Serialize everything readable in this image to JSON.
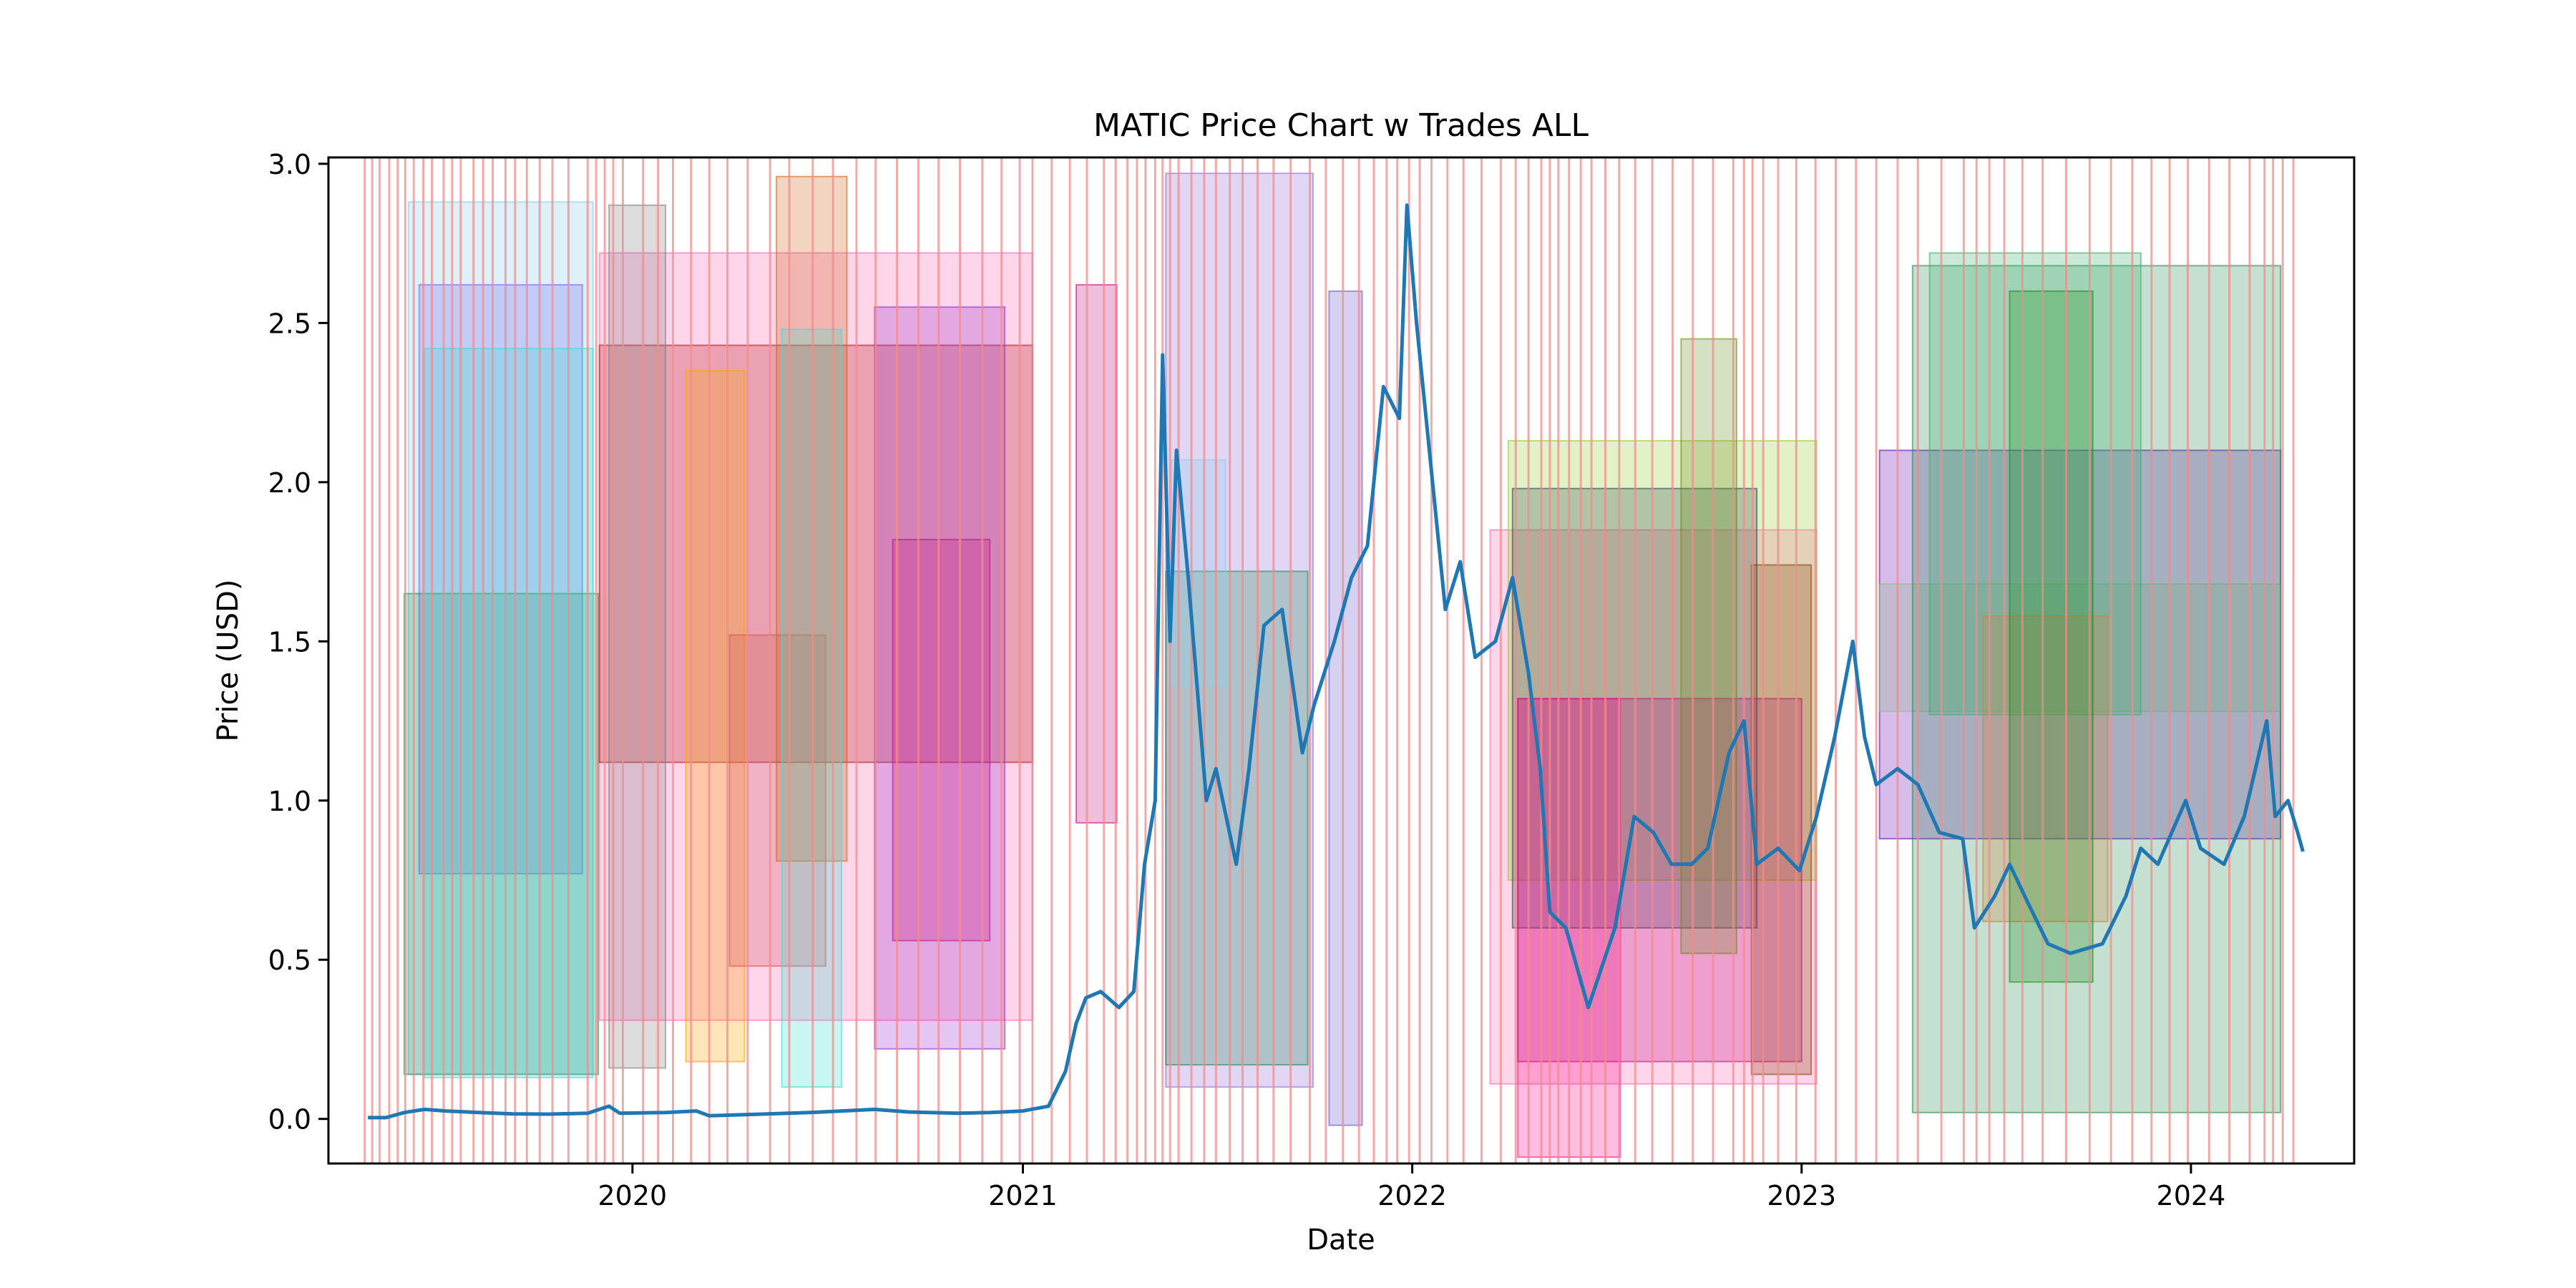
{
  "chart_data": {
    "type": "line",
    "title": "MATIC Price Chart w Trades ALL",
    "xlabel": "Date",
    "ylabel": "Price (USD)",
    "xlim": [
      "2019-03-22",
      "2024-06-02"
    ],
    "ylim": [
      -0.14,
      3.02
    ],
    "grid": false,
    "legend": "none",
    "x_ticks": [
      "2020",
      "2021",
      "2022",
      "2023",
      "2024"
    ],
    "x_tick_dates": [
      "2020-01-01",
      "2021-01-01",
      "2022-01-01",
      "2023-01-01",
      "2024-01-01"
    ],
    "y_ticks": [
      "0.0",
      "0.5",
      "1.0",
      "1.5",
      "2.0",
      "2.5",
      "3.0"
    ],
    "y_tick_values": [
      0.0,
      0.5,
      1.0,
      1.5,
      2.0,
      2.5,
      3.0
    ],
    "colors": {
      "price_line": "#1f77b4",
      "trade_line": "#f28b8b",
      "frame": "#000000"
    },
    "series": [
      {
        "values": [
          [
            "2019-04-28",
            0.004
          ],
          [
            "2019-05-15",
            0.004
          ],
          [
            "2019-06-01",
            0.02
          ],
          [
            "2019-06-20",
            0.03
          ],
          [
            "2019-07-10",
            0.025
          ],
          [
            "2019-08-10",
            0.02
          ],
          [
            "2019-09-10",
            0.016
          ],
          [
            "2019-10-15",
            0.015
          ],
          [
            "2019-11-20",
            0.018
          ],
          [
            "2019-12-10",
            0.04
          ],
          [
            "2019-12-20",
            0.018
          ],
          [
            "2020-02-01",
            0.02
          ],
          [
            "2020-03-01",
            0.025
          ],
          [
            "2020-03-13",
            0.01
          ],
          [
            "2020-05-01",
            0.015
          ],
          [
            "2020-06-15",
            0.02
          ],
          [
            "2020-08-15",
            0.03
          ],
          [
            "2020-09-15",
            0.022
          ],
          [
            "2020-11-01",
            0.018
          ],
          [
            "2020-12-01",
            0.02
          ],
          [
            "2021-01-01",
            0.025
          ],
          [
            "2021-01-25",
            0.04
          ],
          [
            "2021-02-10",
            0.15
          ],
          [
            "2021-02-20",
            0.3
          ],
          [
            "2021-03-01",
            0.38
          ],
          [
            "2021-03-15",
            0.4
          ],
          [
            "2021-04-01",
            0.35
          ],
          [
            "2021-04-15",
            0.4
          ],
          [
            "2021-04-25",
            0.8
          ],
          [
            "2021-05-05",
            1.0
          ],
          [
            "2021-05-12",
            2.4
          ],
          [
            "2021-05-19",
            1.5
          ],
          [
            "2021-05-25",
            2.1
          ],
          [
            "2021-06-05",
            1.7
          ],
          [
            "2021-06-22",
            1.0
          ],
          [
            "2021-07-01",
            1.1
          ],
          [
            "2021-07-20",
            0.8
          ],
          [
            "2021-08-01",
            1.1
          ],
          [
            "2021-08-15",
            1.55
          ],
          [
            "2021-09-01",
            1.6
          ],
          [
            "2021-09-20",
            1.15
          ],
          [
            "2021-10-01",
            1.3
          ],
          [
            "2021-10-20",
            1.5
          ],
          [
            "2021-11-05",
            1.7
          ],
          [
            "2021-11-20",
            1.8
          ],
          [
            "2021-12-05",
            2.3
          ],
          [
            "2021-12-20",
            2.2
          ],
          [
            "2021-12-27",
            2.87
          ],
          [
            "2022-01-05",
            2.5
          ],
          [
            "2022-01-20",
            2.0
          ],
          [
            "2022-02-01",
            1.6
          ],
          [
            "2022-02-15",
            1.75
          ],
          [
            "2022-03-01",
            1.45
          ],
          [
            "2022-03-20",
            1.5
          ],
          [
            "2022-04-05",
            1.7
          ],
          [
            "2022-04-20",
            1.4
          ],
          [
            "2022-05-01",
            1.1
          ],
          [
            "2022-05-10",
            0.65
          ],
          [
            "2022-05-25",
            0.6
          ],
          [
            "2022-06-15",
            0.35
          ],
          [
            "2022-06-25",
            0.45
          ],
          [
            "2022-07-10",
            0.6
          ],
          [
            "2022-07-28",
            0.95
          ],
          [
            "2022-08-15",
            0.9
          ],
          [
            "2022-09-01",
            0.8
          ],
          [
            "2022-09-20",
            0.8
          ],
          [
            "2022-10-05",
            0.85
          ],
          [
            "2022-10-25",
            1.15
          ],
          [
            "2022-11-08",
            1.25
          ],
          [
            "2022-11-20",
            0.8
          ],
          [
            "2022-12-10",
            0.85
          ],
          [
            "2022-12-30",
            0.78
          ],
          [
            "2023-01-15",
            0.95
          ],
          [
            "2023-02-01",
            1.2
          ],
          [
            "2023-02-18",
            1.5
          ],
          [
            "2023-03-01",
            1.2
          ],
          [
            "2023-03-12",
            1.05
          ],
          [
            "2023-04-01",
            1.1
          ],
          [
            "2023-04-20",
            1.05
          ],
          [
            "2023-05-10",
            0.9
          ],
          [
            "2023-06-01",
            0.88
          ],
          [
            "2023-06-12",
            0.6
          ],
          [
            "2023-07-01",
            0.7
          ],
          [
            "2023-07-15",
            0.8
          ],
          [
            "2023-08-01",
            0.68
          ],
          [
            "2023-08-20",
            0.55
          ],
          [
            "2023-09-10",
            0.52
          ],
          [
            "2023-10-10",
            0.55
          ],
          [
            "2023-11-01",
            0.7
          ],
          [
            "2023-11-15",
            0.85
          ],
          [
            "2023-12-01",
            0.8
          ],
          [
            "2023-12-27",
            1.0
          ],
          [
            "2024-01-10",
            0.85
          ],
          [
            "2024-02-01",
            0.8
          ],
          [
            "2024-02-20",
            0.95
          ],
          [
            "2024-03-12",
            1.25
          ],
          [
            "2024-03-20",
            0.95
          ],
          [
            "2024-04-01",
            1.0
          ],
          [
            "2024-04-10",
            0.9
          ],
          [
            "2024-04-15",
            0.84
          ]
        ]
      }
    ],
    "trade_boxes": [
      {
        "start": "2019-06-05",
        "end": "2019-11-25",
        "low": 0.14,
        "high": 2.88,
        "color": "#87ceeb"
      },
      {
        "start": "2019-06-15",
        "end": "2019-11-15",
        "low": 0.77,
        "high": 2.62,
        "color": "#7b68ee"
      },
      {
        "start": "2019-06-01",
        "end": "2019-11-30",
        "low": 0.14,
        "high": 1.65,
        "color": "#2e8b57"
      },
      {
        "start": "2019-06-20",
        "end": "2019-11-25",
        "low": 0.13,
        "high": 2.42,
        "color": "#40e0d0"
      },
      {
        "start": "2019-12-01",
        "end": "2021-01-10",
        "low": 0.31,
        "high": 2.72,
        "color": "#ff69b4"
      },
      {
        "start": "2019-12-01",
        "end": "2021-01-10",
        "low": 1.12,
        "high": 2.43,
        "color": "#b22222"
      },
      {
        "start": "2019-12-10",
        "end": "2020-02-01",
        "low": 0.16,
        "high": 2.87,
        "color": "#808080"
      },
      {
        "start": "2020-02-20",
        "end": "2020-04-15",
        "low": 0.18,
        "high": 2.35,
        "color": "#ffa500"
      },
      {
        "start": "2020-04-01",
        "end": "2020-06-30",
        "low": 0.48,
        "high": 1.52,
        "color": "#cd5c5c"
      },
      {
        "start": "2020-05-15",
        "end": "2020-07-20",
        "low": 0.81,
        "high": 2.96,
        "color": "#d2691e"
      },
      {
        "start": "2020-05-20",
        "end": "2020-07-15",
        "low": 0.1,
        "high": 2.48,
        "color": "#40e0d0"
      },
      {
        "start": "2020-08-15",
        "end": "2020-12-15",
        "low": 0.22,
        "high": 2.55,
        "color": "#9932cc"
      },
      {
        "start": "2020-09-01",
        "end": "2020-12-01",
        "low": 0.56,
        "high": 1.82,
        "color": "#c71585"
      },
      {
        "start": "2021-02-20",
        "end": "2021-03-30",
        "low": 0.93,
        "high": 2.62,
        "color": "#c71585"
      },
      {
        "start": "2021-05-15",
        "end": "2021-09-30",
        "low": 0.1,
        "high": 2.97,
        "color": "#9370db"
      },
      {
        "start": "2021-05-15",
        "end": "2021-09-25",
        "low": 0.17,
        "high": 1.72,
        "color": "#2e8b57"
      },
      {
        "start": "2021-05-20",
        "end": "2021-07-10",
        "low": 1.36,
        "high": 2.07,
        "color": "#87ceeb"
      },
      {
        "start": "2021-10-15",
        "end": "2021-11-15",
        "low": -0.02,
        "high": 2.6,
        "color": "#6a5acd"
      },
      {
        "start": "2022-03-15",
        "end": "2023-01-15",
        "low": 0.11,
        "high": 1.85,
        "color": "#ff69b4"
      },
      {
        "start": "2022-04-01",
        "end": "2023-01-15",
        "low": 0.75,
        "high": 2.13,
        "color": "#9acd32"
      },
      {
        "start": "2022-04-05",
        "end": "2022-11-20",
        "low": 0.6,
        "high": 1.98,
        "color": "#2f4f4f"
      },
      {
        "start": "2022-04-10",
        "end": "2022-07-15",
        "low": -0.12,
        "high": 1.32,
        "color": "#ff1493"
      },
      {
        "start": "2022-04-10",
        "end": "2023-01-01",
        "low": 0.18,
        "high": 1.32,
        "color": "#c71585"
      },
      {
        "start": "2022-09-10",
        "end": "2022-11-01",
        "low": 0.52,
        "high": 2.45,
        "color": "#6b8e23"
      },
      {
        "start": "2022-11-15",
        "end": "2023-01-10",
        "low": 0.14,
        "high": 1.74,
        "color": "#8b4513"
      },
      {
        "start": "2023-03-15",
        "end": "2024-03-25",
        "low": 0.88,
        "high": 2.1,
        "color": "#6a0dad"
      },
      {
        "start": "2023-03-15",
        "end": "2024-03-25",
        "low": 1.28,
        "high": 1.68,
        "color": "#8fbc8f"
      },
      {
        "start": "2023-04-15",
        "end": "2024-03-25",
        "low": 0.02,
        "high": 2.68,
        "color": "#2e8b57"
      },
      {
        "start": "2023-05-01",
        "end": "2023-11-15",
        "low": 1.27,
        "high": 2.72,
        "color": "#3cb371"
      },
      {
        "start": "2023-06-20",
        "end": "2023-10-15",
        "low": 0.62,
        "high": 1.58,
        "color": "#cd853f"
      },
      {
        "start": "2023-07-15",
        "end": "2023-10-01",
        "low": 0.43,
        "high": 2.6,
        "color": "#228b22"
      }
    ],
    "trade_dates": [
      "2019-04-25",
      "2019-05-02",
      "2019-05-09",
      "2019-05-18",
      "2019-05-26",
      "2019-06-02",
      "2019-06-10",
      "2019-06-19",
      "2019-06-27",
      "2019-07-08",
      "2019-07-16",
      "2019-07-24",
      "2019-08-05",
      "2019-08-14",
      "2019-08-23",
      "2019-09-04",
      "2019-09-13",
      "2019-09-24",
      "2019-10-06",
      "2019-10-18",
      "2019-11-02",
      "2019-11-20",
      "2019-11-28",
      "2019-12-06",
      "2019-12-14",
      "2019-12-23",
      "2020-01-11",
      "2020-01-25",
      "2020-02-08",
      "2020-02-25",
      "2020-03-13",
      "2020-03-30",
      "2020-04-18",
      "2020-05-09",
      "2020-05-27",
      "2020-06-18",
      "2020-07-07",
      "2020-07-29",
      "2020-08-16",
      "2020-09-05",
      "2020-09-25",
      "2020-10-14",
      "2020-11-03",
      "2020-11-24",
      "2020-12-12",
      "2020-12-29",
      "2021-01-10",
      "2021-01-28",
      "2021-02-14",
      "2021-03-02",
      "2021-03-18",
      "2021-03-29",
      "2021-04-09",
      "2021-04-18",
      "2021-04-26",
      "2021-05-05",
      "2021-05-12",
      "2021-05-19",
      "2021-05-27",
      "2021-06-08",
      "2021-06-20",
      "2021-07-01",
      "2021-07-14",
      "2021-07-26",
      "2021-08-09",
      "2021-08-24",
      "2021-09-09",
      "2021-09-27",
      "2021-10-12",
      "2021-10-28",
      "2021-11-12",
      "2021-11-26",
      "2021-12-08",
      "2021-12-18",
      "2021-12-29",
      "2022-01-08",
      "2022-01-19",
      "2022-02-03",
      "2022-02-18",
      "2022-03-07",
      "2022-03-25",
      "2022-04-08",
      "2022-04-20",
      "2022-05-02",
      "2022-05-10",
      "2022-05-18",
      "2022-05-28",
      "2022-06-08",
      "2022-06-18",
      "2022-07-01",
      "2022-07-14",
      "2022-07-29",
      "2022-08-14",
      "2022-09-02",
      "2022-09-21",
      "2022-10-10",
      "2022-10-29",
      "2022-11-08",
      "2022-11-16",
      "2022-11-26",
      "2022-12-10",
      "2022-12-27",
      "2023-01-14",
      "2023-02-02",
      "2023-02-21",
      "2023-03-12",
      "2023-04-01",
      "2023-04-20",
      "2023-05-12",
      "2023-06-02",
      "2023-06-14",
      "2023-06-26",
      "2023-07-10",
      "2023-07-27",
      "2023-08-15",
      "2023-09-06",
      "2023-09-28",
      "2023-10-18",
      "2023-11-07",
      "2023-11-25",
      "2023-12-12",
      "2023-12-29",
      "2024-01-18",
      "2024-02-06",
      "2024-02-25",
      "2024-03-10",
      "2024-03-18",
      "2024-03-27",
      "2024-04-06"
    ]
  }
}
